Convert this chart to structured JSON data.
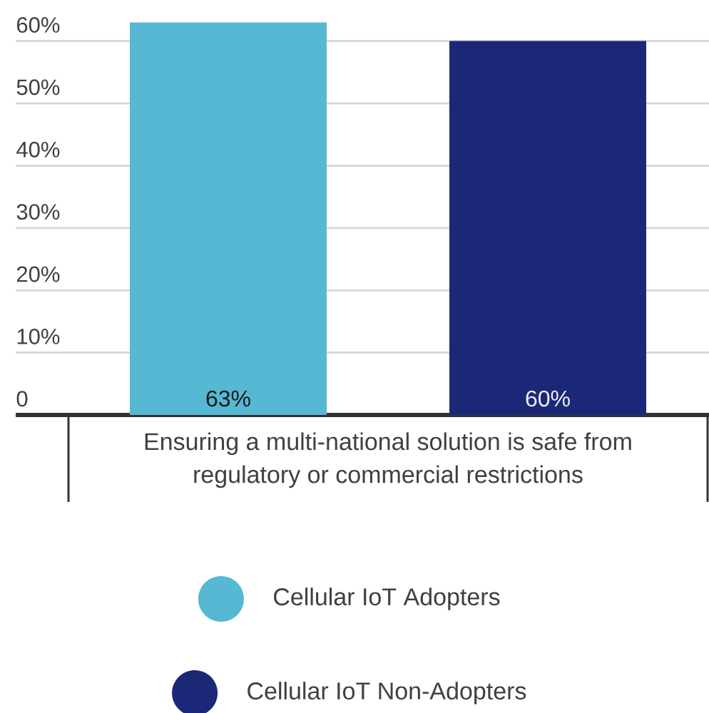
{
  "chart_data": {
    "type": "bar",
    "categories": [
      "Ensuring a multi-national solution is safe from regulatory or commercial restrictions"
    ],
    "series": [
      {
        "name": "Cellular IoT Adopters",
        "color": "#56b8d2",
        "values": [
          63
        ],
        "value_labels": [
          "63%"
        ]
      },
      {
        "name": "Cellular IoT Non-Adopters",
        "color": "#1b2878",
        "values": [
          60
        ],
        "value_labels": [
          "60%"
        ]
      }
    ],
    "ylim": [
      0,
      63
    ],
    "yticks": [
      0,
      {
        "value": 10,
        "label": "10%"
      },
      {
        "value": 20,
        "label": "20%"
      },
      {
        "value": 30,
        "label": "30%"
      },
      {
        "value": 40,
        "label": "40%"
      },
      {
        "value": 50,
        "label": "50%"
      },
      {
        "value": 60,
        "label": "60%"
      }
    ],
    "grid": "y",
    "legend": "bottom"
  }
}
